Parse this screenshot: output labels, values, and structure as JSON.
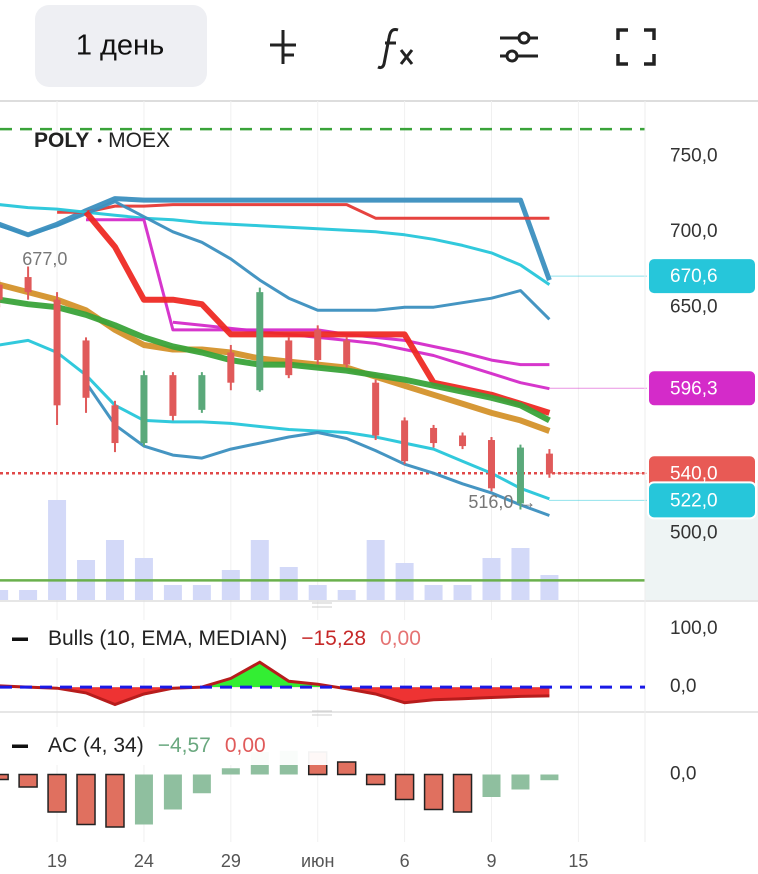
{
  "toolbar": {
    "interval": "1 день"
  },
  "chart_data": [
    {
      "type": "candlestick",
      "symbol": "POLY",
      "exchange": "MOEX",
      "x": [
        -2,
        -1,
        0,
        1,
        2,
        3,
        4,
        5,
        6,
        7,
        8,
        9,
        10,
        11,
        12,
        13,
        14,
        15,
        16,
        17
      ],
      "xlim": [
        -1.97,
        20.3
      ],
      "xticks": [
        {
          "value": 0,
          "label": "19"
        },
        {
          "value": 3,
          "label": "24"
        },
        {
          "value": 6,
          "label": "29"
        },
        {
          "value": 9,
          "label": "июн"
        },
        {
          "value": 12,
          "label": "6"
        },
        {
          "value": 15,
          "label": "9"
        },
        {
          "value": 18,
          "label": "15"
        }
      ],
      "ylim": [
        456,
        786
      ],
      "yticks": [
        {
          "value": 750,
          "label": "750,0"
        },
        {
          "value": 700,
          "label": "700,0"
        },
        {
          "value": 650,
          "label": "650,0"
        },
        {
          "value": 500,
          "label": "500,0"
        }
      ],
      "open": [
        665,
        670,
        655,
        628,
        585,
        560,
        605,
        582,
        620,
        595,
        628,
        635,
        628,
        600,
        575,
        570,
        565,
        562,
        520,
        553
      ],
      "close": [
        655,
        660,
        585,
        590,
        560,
        605,
        578,
        605,
        600,
        660,
        605,
        615,
        612,
        565,
        548,
        560,
        558,
        530,
        557,
        540
      ],
      "high": [
        668,
        677,
        660,
        630,
        588,
        608,
        607,
        607,
        625,
        663,
        630,
        638,
        630,
        602,
        577,
        572,
        567,
        564,
        559,
        556
      ],
      "low": [
        650,
        655,
        572,
        580,
        554,
        558,
        575,
        580,
        595,
        594,
        603,
        612,
        610,
        562,
        546,
        557,
        556,
        528,
        516,
        537
      ],
      "up_color": "#5aa97a",
      "down_color": "#e05a5a",
      "volume": {
        "values": [
          10,
          10,
          100,
          40,
          60,
          42,
          15,
          15,
          30,
          60,
          33,
          15,
          10,
          60,
          37,
          15,
          15,
          42,
          52,
          25
        ],
        "color": "#d3d9f8"
      },
      "lines": [
        {
          "color": "#3b8fbf",
          "width": 5,
          "values": [
            705,
            698,
            705,
            714,
            722,
            721,
            721,
            721,
            721,
            721,
            721,
            721,
            721,
            721,
            721,
            721,
            721,
            721,
            721,
            668
          ]
        },
        {
          "color": "#e53935",
          "width": 3,
          "values": [
            null,
            null,
            713,
            713,
            717,
            717,
            718,
            718,
            718,
            718,
            718,
            718,
            718,
            709,
            709,
            709,
            709,
            709,
            709,
            709
          ]
        },
        {
          "color": "#26c6da",
          "width": 3,
          "values": [
            718,
            716,
            715,
            713,
            711,
            709,
            708,
            706,
            705,
            704,
            703,
            702,
            701,
            700,
            698,
            695,
            691,
            686,
            678,
            665
          ]
        },
        {
          "color": "#3b8fbf",
          "width": 3,
          "values": [
            704,
            698,
            704,
            712,
            720,
            710,
            700,
            693,
            682,
            668,
            656,
            648,
            648,
            648,
            650,
            650,
            653,
            656,
            661,
            642
          ]
        },
        {
          "color": "#d42bc9",
          "width": 3,
          "values": [
            null,
            null,
            null,
            708,
            708,
            708,
            635,
            635,
            635,
            635,
            635,
            635,
            632,
            630,
            628,
            624,
            620,
            615,
            612,
            612
          ]
        },
        {
          "color": "#d42bc9",
          "width": 3,
          "values": [
            null,
            null,
            null,
            null,
            null,
            null,
            640,
            638,
            636,
            634,
            632,
            630,
            628,
            626,
            622,
            618,
            612,
            606,
            600,
            596
          ]
        },
        {
          "color": "#ee2a24",
          "width": 6,
          "values": [
            null,
            null,
            null,
            713,
            690,
            655,
            655,
            652,
            632,
            632,
            632,
            632,
            632,
            632,
            632,
            600,
            596,
            592,
            586,
            580
          ]
        },
        {
          "color": "#d4922b",
          "width": 6,
          "values": [
            665,
            660,
            655,
            648,
            635,
            625,
            622,
            622,
            620,
            616,
            614,
            612,
            610,
            604,
            598,
            592,
            586,
            580,
            575,
            568
          ]
        },
        {
          "color": "#3aa33a",
          "width": 6,
          "values": [
            655,
            652,
            650,
            645,
            638,
            630,
            624,
            620,
            615,
            612,
            612,
            610,
            608,
            605,
            602,
            598,
            594,
            590,
            585,
            575
          ]
        },
        {
          "color": "#26c6da",
          "width": 3,
          "values": [
            625,
            628,
            620,
            605,
            585,
            575,
            574,
            574,
            573,
            571,
            569,
            568,
            567,
            564,
            560,
            556,
            548,
            540,
            530,
            523
          ]
        },
        {
          "color": "#3b8fbf",
          "width": 3,
          "values": [
            null,
            null,
            null,
            600,
            572,
            558,
            552,
            550,
            556,
            560,
            564,
            567,
            563,
            555,
            546,
            540,
            533,
            527,
            519,
            512
          ]
        }
      ],
      "levels": [
        {
          "value": 768,
          "color": "#3aa33a",
          "style": "dashed"
        },
        {
          "value": 469,
          "color": "#6ab04c",
          "style": "solid"
        },
        {
          "value": 540,
          "color": "#e04848",
          "style": "dotted"
        }
      ],
      "price_tags": [
        {
          "value": 670.6,
          "label": "670,6",
          "color": "#26c6da"
        },
        {
          "value": 596.3,
          "label": "596,3",
          "color": "#d42bc9"
        },
        {
          "value": 540,
          "label": "540,0",
          "color": "#e85a55"
        },
        {
          "value": 522,
          "label": "522,0",
          "color": "#26c6da"
        }
      ],
      "annotations": [
        {
          "x": -1.2,
          "value": 677,
          "label": "677,0"
        },
        {
          "x": 14.2,
          "value": 516,
          "label": "516,0 →"
        }
      ]
    },
    {
      "type": "area",
      "name": "Bulls (10, EMA, MEDIAN)",
      "value_text": "−15,28",
      "value2_text": "0,00",
      "x": [
        -2,
        -1,
        0,
        1,
        2,
        3,
        4,
        5,
        6,
        7,
        8,
        9,
        10,
        11,
        12,
        13,
        14,
        15,
        16,
        17
      ],
      "values": [
        2,
        0,
        -2,
        -10,
        -30,
        -12,
        -2,
        0,
        15,
        43,
        10,
        5,
        -3,
        -12,
        -27,
        -22,
        -20,
        -18,
        -16,
        -15.28
      ],
      "ylim": [
        -43,
        133
      ],
      "yticks": [
        {
          "value": 100,
          "label": "100,0"
        },
        {
          "value": 0,
          "label": "0,0"
        }
      ],
      "pos_color": "#33ee33",
      "neg_color": "#ee3333",
      "line_color": "#b71c1c",
      "levels": [
        {
          "value": 0,
          "color": "#1a1ae6",
          "style": "dashed"
        }
      ]
    },
    {
      "type": "histogram",
      "name": "AC (4, 34)",
      "value_text": "−4,57",
      "value2_text": "0,00",
      "x": [
        -2,
        -1,
        0,
        1,
        2,
        3,
        4,
        5,
        6,
        7,
        8,
        9,
        10,
        11,
        12,
        13,
        14,
        15,
        16,
        17
      ],
      "values": [
        -4,
        -10,
        -30,
        -40,
        -42,
        -40,
        -28,
        -15,
        5,
        18,
        19,
        18,
        10,
        -8,
        -20,
        -28,
        -30,
        -18,
        -12,
        -4.57
      ],
      "ylim": [
        -50,
        30
      ],
      "yticks": [
        {
          "value": 0,
          "label": "0,0"
        }
      ],
      "up_color": "#8fbf9f",
      "down_color": "#e0705f"
    }
  ]
}
